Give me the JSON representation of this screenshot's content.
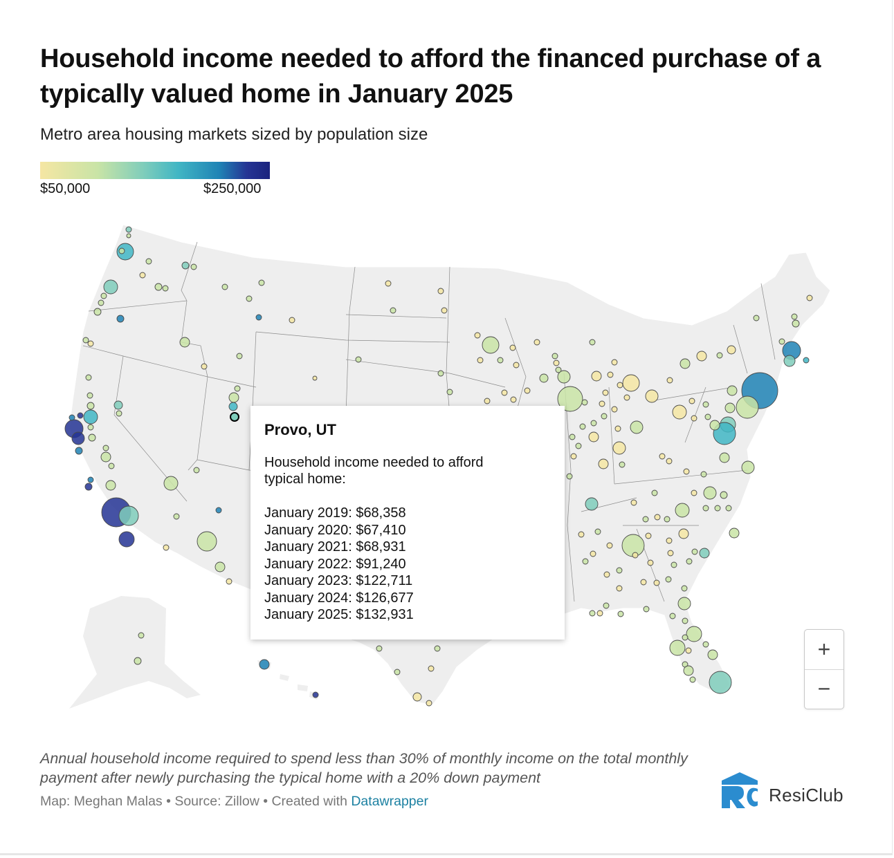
{
  "header": {
    "title": "Household income needed to afford the financed purchase of a typically valued home in January 2025",
    "subtitle": "Metro area housing markets sized by population size"
  },
  "legend": {
    "min_label": "$50,000",
    "max_label": "$250,000",
    "colors": [
      "#f5e6a3",
      "#c9e4a6",
      "#7fcdbb",
      "#41b6c4",
      "#1f83b5",
      "#253494",
      "#1a237e"
    ]
  },
  "tooltip": {
    "title": "Provo, UT",
    "label": "Household income needed to afford typical home:",
    "rows": [
      "January 2019: $68,358",
      "January 2020: $67,410",
      "January 2021: $68,931",
      "January 2022: $91,240",
      "January 2023: $122,711",
      "January 2024: $126,677",
      "January 2025: $132,931"
    ]
  },
  "zoom": {
    "in_label": "+",
    "out_label": "−"
  },
  "notes": "Annual household income required to spend less than 30% of monthly income on the total monthly payment after newly purchasing the typical home with a 20% down payment",
  "credits": {
    "prefix": "Map: Meghan Malas • Source: Zillow • Created with ",
    "link": "Datawrapper"
  },
  "brand": {
    "logo_text": "ResiClub"
  }
}
